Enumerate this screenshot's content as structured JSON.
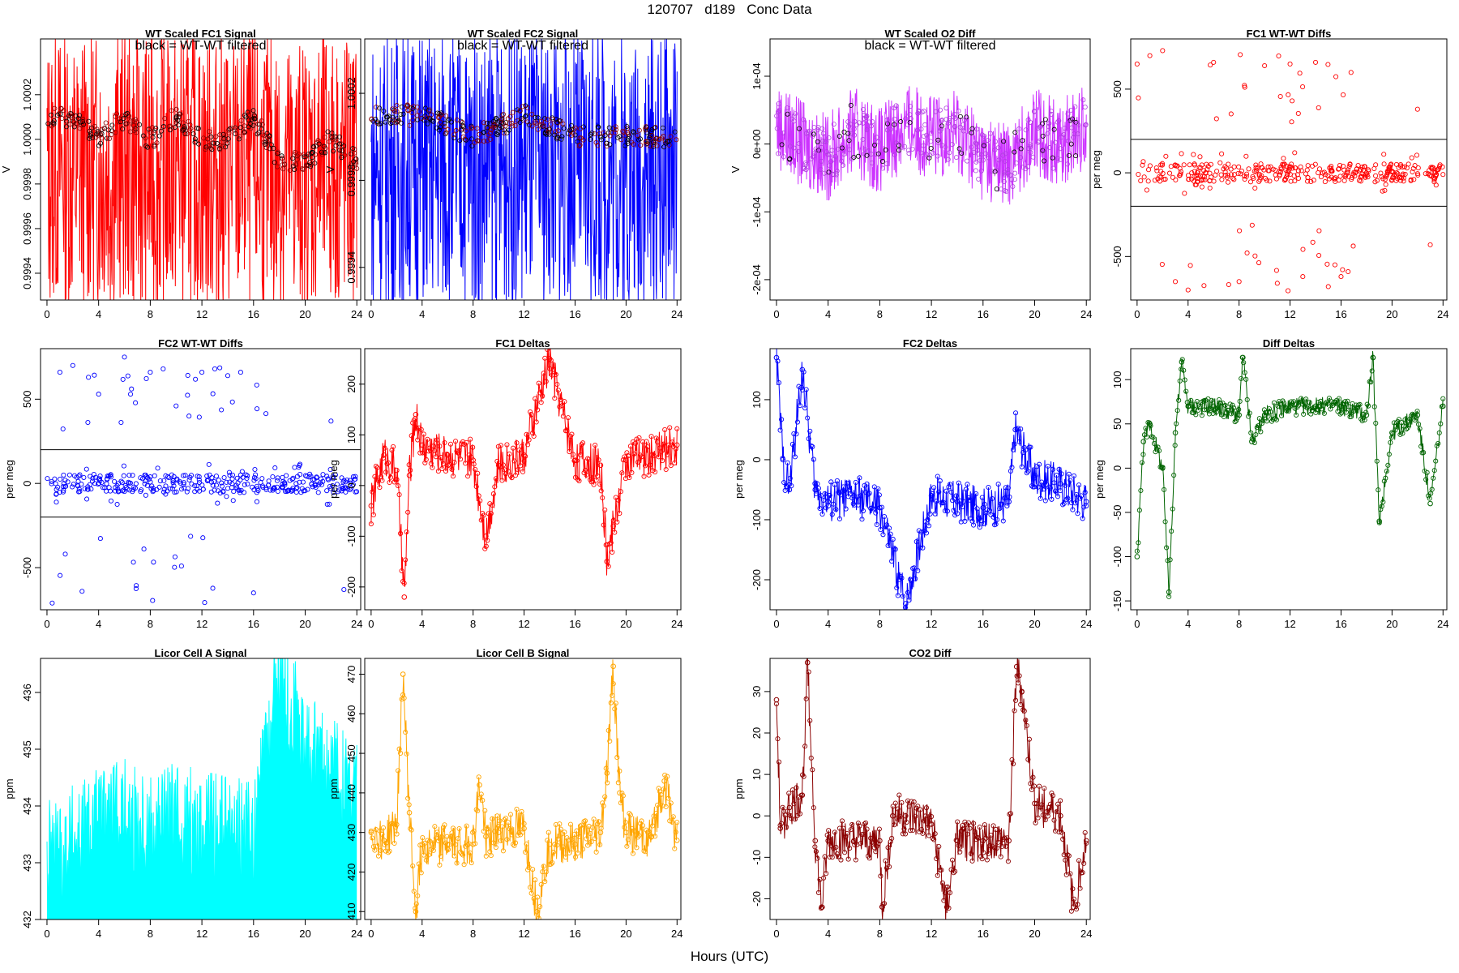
{
  "figure": {
    "title": "120707   d189   Conc Data",
    "xlabel": "Hours (UTC)"
  },
  "chart_data": [
    {
      "id": "p1",
      "type": "line",
      "title": "WT Scaled FC1 Signal",
      "note": "black = WT-WT filtered",
      "ylabel": "V",
      "color": "#ff0000",
      "xlim": [
        -0.5,
        24.3
      ],
      "ylim": [
        0.99928,
        1.00045
      ],
      "xticks": [
        0,
        4,
        8,
        12,
        16,
        20,
        24
      ],
      "yticks": [
        0.9994,
        0.9996,
        0.9998,
        1.0,
        1.0002
      ],
      "ytick_labels": [
        "0.9994",
        "0.9996",
        "0.9998",
        "1.0000",
        "1.0002"
      ],
      "series": [
        {
          "name": "FC1 signal",
          "x": [
            0,
            1,
            2,
            3,
            4,
            5,
            6,
            7,
            8,
            9,
            10,
            11,
            12,
            13,
            14,
            15,
            16,
            17,
            18,
            19,
            20,
            21,
            22,
            23,
            24
          ],
          "y": [
            0.99985,
            0.99988,
            0.99984,
            0.99986,
            0.99987,
            0.99986,
            0.99988,
            0.99985,
            0.99984,
            0.99986,
            0.99987,
            0.99985,
            0.99986,
            0.99984,
            0.99986,
            0.99985,
            0.99986,
            0.99984,
            0.99985,
            0.99983,
            0.99984,
            0.99985,
            0.99986,
            0.99984,
            0.99985
          ]
        },
        {
          "name": "WT-WT filtered",
          "x": [
            0,
            2,
            4,
            6,
            8,
            10,
            12,
            14,
            16,
            18,
            20,
            22,
            24
          ],
          "y": [
            1.0001,
            1.0001,
            1.0,
            1.0001,
            1.0,
            1.0001,
            1.0,
            1.0,
            1.0001,
            0.9999,
            0.9999,
            1.0,
            0.9999
          ]
        }
      ]
    },
    {
      "id": "p2",
      "type": "line",
      "title": "WT Scaled FC2 Signal",
      "note": "black = WT-WT filtered",
      "ylabel": "V",
      "color": "#0000ff",
      "xlim": [
        -0.5,
        24.3
      ],
      "ylim": [
        0.99925,
        1.00045
      ],
      "xticks": [
        0,
        4,
        8,
        12,
        16,
        20,
        24
      ],
      "yticks": [
        0.9994,
        0.9998,
        1.0002
      ],
      "ytick_labels": [
        "0.9994",
        "0.9998",
        "1.0002"
      ],
      "series": [
        {
          "name": "FC2 signal",
          "x": [
            0,
            4,
            8,
            12,
            16,
            20,
            24
          ],
          "y": [
            0.99985,
            0.99986,
            0.99985,
            0.99986,
            0.99985,
            0.99984,
            0.99985
          ]
        },
        {
          "name": "WT-WT filtered",
          "x": [
            0,
            4,
            8,
            12,
            16,
            20,
            24
          ],
          "y": [
            1.0001,
            1.0001,
            1.0,
            1.0001,
            1.0,
            1.0,
            1.0
          ]
        }
      ]
    },
    {
      "id": "p3",
      "type": "line",
      "title": "WT Scaled O2 Diff",
      "note": "black = WT-WT filtered",
      "ylabel": "V",
      "color": "#cc33ff",
      "xlim": [
        -0.5,
        24.3
      ],
      "ylim": [
        -0.00023,
        0.000155
      ],
      "xticks": [
        0,
        4,
        8,
        12,
        16,
        20,
        24
      ],
      "yticks": [
        -0.0002,
        -0.0001,
        0,
        0.0001
      ],
      "ytick_labels": [
        "-2e-04",
        "-1e-04",
        "0e+00",
        "1e-04"
      ],
      "series": [
        {
          "name": "O2 diff",
          "x": [
            0,
            2,
            4,
            6,
            8,
            10,
            12,
            14,
            16,
            18,
            20,
            22,
            24
          ],
          "y": [
            3e-05,
            0.0,
            -2e-05,
            2e-05,
            -1e-05,
            3e-05,
            1e-05,
            2e-05,
            -2e-05,
            -3e-05,
            2e-05,
            0.0,
            3e-05
          ]
        }
      ]
    },
    {
      "id": "p4",
      "type": "scatter",
      "title": "FC1 WT-WT Diffs",
      "ylabel": "per meg",
      "color": "#ff0000",
      "xlim": [
        -0.5,
        24.3
      ],
      "ylim": [
        -760,
        800
      ],
      "xticks": [
        0,
        4,
        8,
        12,
        16,
        20,
        24
      ],
      "yticks": [
        -500,
        0,
        500
      ],
      "ytick_labels": [
        "-500",
        "0",
        "500"
      ],
      "hlines": [
        200,
        -200
      ],
      "series": [
        {
          "name": "FC1 diffs",
          "x": [
            0,
            1,
            2,
            3,
            4,
            6,
            8,
            10,
            11,
            12,
            13,
            14,
            15,
            16,
            18,
            20,
            22,
            23,
            24
          ],
          "y": [
            650,
            700,
            730,
            -650,
            -700,
            660,
            -650,
            640,
            -660,
            650,
            -620,
            660,
            -680,
            -620,
            0,
            10,
            380,
            -430,
            -10
          ]
        }
      ]
    },
    {
      "id": "p5",
      "type": "scatter",
      "title": "FC2 WT-WT Diffs",
      "ylabel": "per meg",
      "color": "#0000ff",
      "xlim": [
        -0.5,
        24.3
      ],
      "ylim": [
        -750,
        800
      ],
      "xticks": [
        0,
        4,
        8,
        12,
        16,
        20,
        24
      ],
      "yticks": [
        -500,
        0,
        500
      ],
      "ytick_labels": [
        "-500",
        "0",
        "500"
      ],
      "hlines": [
        200,
        -200
      ],
      "series": [
        {
          "name": "FC2 diffs",
          "x": [
            1,
            2,
            4,
            6,
            8,
            9,
            10,
            11,
            12,
            13,
            14,
            15,
            16,
            22,
            23
          ],
          "y": [
            660,
            700,
            530,
            750,
            660,
            680,
            460,
            400,
            660,
            680,
            640,
            660,
            -650,
            370,
            -630
          ]
        }
      ]
    },
    {
      "id": "p6",
      "type": "line",
      "title": "FC1 Deltas",
      "ylabel": "per meg",
      "color": "#ff0000",
      "xlim": [
        -0.5,
        24.3
      ],
      "ylim": [
        -245,
        270
      ],
      "xticks": [
        0,
        4,
        8,
        12,
        16,
        20,
        24
      ],
      "yticks": [
        -200,
        -100,
        0,
        100,
        200
      ],
      "ytick_labels": [
        "-200",
        "-100",
        "0",
        "100",
        "200"
      ],
      "series": [
        {
          "name": "FC1 deltas",
          "x": [
            0,
            1,
            2,
            2.6,
            3,
            3.5,
            4,
            6,
            8,
            9,
            10,
            12,
            14,
            16,
            18,
            18.5,
            19,
            20,
            22,
            24
          ],
          "y": [
            -40,
            60,
            30,
            -220,
            20,
            140,
            80,
            60,
            50,
            -100,
            40,
            60,
            250,
            50,
            40,
            -150,
            -80,
            50,
            60,
            80
          ]
        }
      ]
    },
    {
      "id": "p7",
      "type": "line",
      "title": "FC2 Deltas",
      "ylabel": "per meg",
      "color": "#0000ff",
      "xlim": [
        -0.5,
        24.3
      ],
      "ylim": [
        -250,
        185
      ],
      "xticks": [
        0,
        4,
        8,
        12,
        16,
        20,
        24
      ],
      "yticks": [
        -200,
        -100,
        0,
        100
      ],
      "ytick_labels": [
        "-200",
        "-100",
        "0",
        "100"
      ],
      "series": [
        {
          "name": "FC2 deltas",
          "x": [
            0,
            0.5,
            1,
            2,
            3,
            4,
            6,
            8,
            10,
            12,
            14,
            16,
            18,
            18.5,
            20,
            22,
            24
          ],
          "y": [
            170,
            0,
            -50,
            150,
            -50,
            -70,
            -60,
            -80,
            -240,
            -60,
            -70,
            -80,
            -70,
            50,
            -30,
            -40,
            -70
          ]
        }
      ]
    },
    {
      "id": "p8",
      "type": "line",
      "title": "Diff Deltas",
      "ylabel": "per meg",
      "color": "#006400",
      "xlim": [
        -0.5,
        24.3
      ],
      "ylim": [
        -160,
        135
      ],
      "xticks": [
        0,
        4,
        8,
        12,
        16,
        20,
        24
      ],
      "yticks": [
        -150,
        -100,
        -50,
        0,
        50,
        100
      ],
      "ytick_labels": [
        "-150",
        "-100",
        "-50",
        "0",
        "50",
        "100"
      ],
      "series": [
        {
          "name": "Diff deltas",
          "x": [
            0,
            0.5,
            1,
            2,
            2.5,
            3,
            3.5,
            4,
            6,
            8,
            8.3,
            9,
            10,
            12,
            14,
            16,
            18,
            18.5,
            19,
            20,
            22,
            23,
            24
          ],
          "y": [
            -100,
            30,
            50,
            0,
            -140,
            40,
            120,
            70,
            70,
            60,
            125,
            30,
            60,
            70,
            70,
            70,
            60,
            125,
            -60,
            40,
            60,
            -40,
            70
          ]
        }
      ]
    },
    {
      "id": "p9",
      "type": "area",
      "title": "Licor Cell A Signal",
      "ylabel": "ppm",
      "color": "#00ffff",
      "xlim": [
        -0.5,
        24.3
      ],
      "ylim": [
        432,
        436.6
      ],
      "xticks": [
        0,
        4,
        8,
        12,
        16,
        20,
        24
      ],
      "yticks": [
        432,
        433,
        434,
        435,
        436
      ],
      "ytick_labels": [
        "432",
        "433",
        "434",
        "435",
        "436"
      ],
      "series": [
        {
          "name": "Cell A",
          "x": [
            0,
            2,
            4,
            6,
            8,
            10,
            12,
            14,
            16,
            17,
            18,
            19,
            20,
            22,
            24
          ],
          "y": [
            433.0,
            433.3,
            433.6,
            433.8,
            433.6,
            433.7,
            433.5,
            433.5,
            433.3,
            434.8,
            436.4,
            435.6,
            435.0,
            434.5,
            434.2
          ]
        }
      ]
    },
    {
      "id": "p10",
      "type": "line",
      "title": "Licor Cell B Signal",
      "ylabel": "ppm",
      "color": "#ffa500",
      "xlim": [
        -0.5,
        24.3
      ],
      "ylim": [
        408,
        474
      ],
      "xticks": [
        0,
        4,
        8,
        12,
        16,
        20,
        24
      ],
      "yticks": [
        410,
        420,
        430,
        440,
        450,
        460,
        470
      ],
      "ytick_labels": [
        "410",
        "420",
        "430",
        "440",
        "450",
        "460",
        "470"
      ],
      "series": [
        {
          "name": "Cell B",
          "x": [
            0,
            1,
            2,
            2.5,
            3,
            3.5,
            4,
            6,
            8,
            8.5,
            9,
            10,
            12,
            13,
            14,
            16,
            18,
            18.5,
            19,
            19.5,
            20,
            22,
            23,
            24
          ],
          "y": [
            430,
            428,
            432,
            470,
            435,
            410,
            427,
            427,
            427,
            442,
            429,
            430,
            431,
            410,
            427,
            427,
            430,
            445,
            472,
            440,
            430,
            429,
            443,
            428
          ]
        }
      ]
    },
    {
      "id": "p11",
      "type": "line",
      "title": "CO2 Diff",
      "ylabel": "ppm",
      "color": "#8b0000",
      "xlim": [
        -0.5,
        24.3
      ],
      "ylim": [
        -25,
        38
      ],
      "xticks": [
        0,
        4,
        8,
        12,
        16,
        20,
        24
      ],
      "yticks": [
        -20,
        -10,
        0,
        10,
        20,
        30
      ],
      "ytick_labels": [
        "-20",
        "-10",
        "0",
        "10",
        "20",
        "30"
      ],
      "series": [
        {
          "name": "CO2 diff",
          "x": [
            0,
            0.3,
            1,
            2,
            2.4,
            3,
            3.5,
            4,
            6,
            8,
            8.2,
            9,
            10,
            12,
            13.2,
            14,
            16,
            18,
            18.6,
            19,
            20,
            22,
            23,
            24
          ],
          "y": [
            28,
            -3,
            2,
            5,
            37,
            -6,
            -22,
            -6,
            -6,
            -6,
            -22,
            0,
            0,
            -2,
            -22,
            -6,
            -6,
            -6,
            36,
            30,
            3,
            0,
            -22,
            -6
          ]
        }
      ]
    }
  ]
}
